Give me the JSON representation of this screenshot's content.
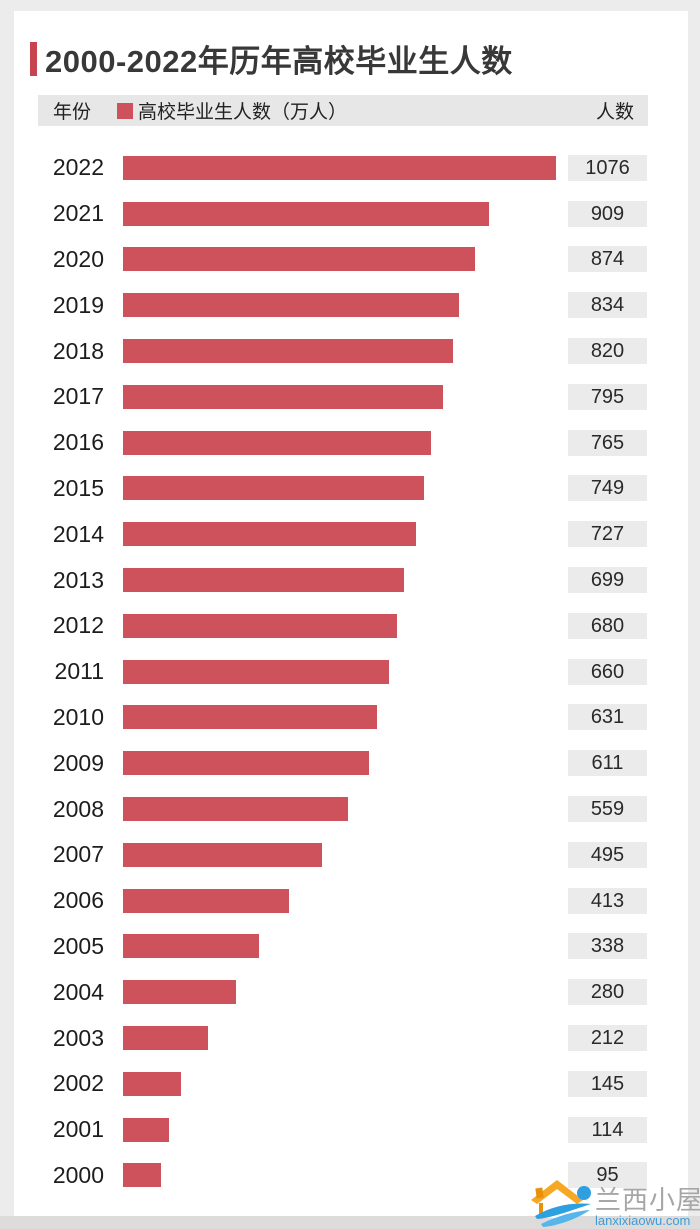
{
  "page": {
    "background_color": "#edecec",
    "card_color": "#ffffff",
    "accent_color": "#c7434e",
    "bar_color": "#cd525c",
    "badge_color": "#ebebeb",
    "header_strip_color": "#e8e7e7"
  },
  "header": {
    "title": "2000-2022年历年高校毕业生人数"
  },
  "table_header": {
    "year_col": "年份",
    "legend_label": "高校毕业生人数（万人）",
    "count_col": "人数"
  },
  "watermark": {
    "name": "兰西小屋",
    "url": "lanxixiaowu.com"
  },
  "chart_data": {
    "type": "bar",
    "orientation": "horizontal",
    "title": "2000-2022年历年高校毕业生人数",
    "series_name": "高校毕业生人数（万人）",
    "categories": [
      "2022",
      "2021",
      "2020",
      "2019",
      "2018",
      "2017",
      "2016",
      "2015",
      "2014",
      "2013",
      "2012",
      "2011",
      "2010",
      "2009",
      "2008",
      "2007",
      "2006",
      "2005",
      "2004",
      "2003",
      "2002",
      "2001",
      "2000"
    ],
    "values": [
      1076,
      909,
      874,
      834,
      820,
      795,
      765,
      749,
      727,
      699,
      680,
      660,
      631,
      611,
      559,
      495,
      413,
      338,
      280,
      212,
      145,
      114,
      95
    ],
    "xlim": [
      0,
      1076
    ],
    "unit": "万人",
    "grid": false,
    "legend_position": "top",
    "value_labels": "right-badges"
  }
}
